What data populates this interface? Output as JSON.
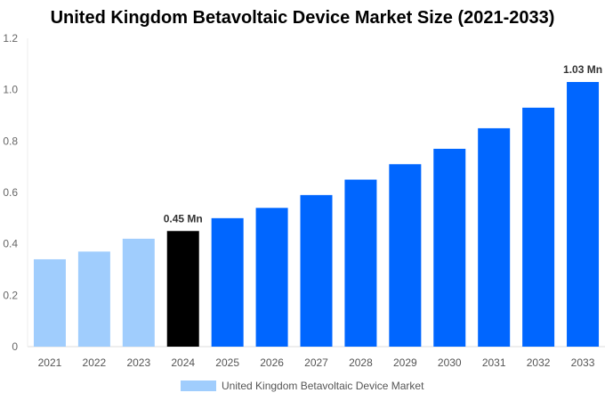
{
  "chart_data": {
    "type": "bar",
    "title": "United Kingdom Betavoltaic Device Market Size (2021-2033)",
    "categories": [
      "2021",
      "2022",
      "2023",
      "2024",
      "2025",
      "2026",
      "2027",
      "2028",
      "2029",
      "2030",
      "2031",
      "2032",
      "2033"
    ],
    "series": [
      {
        "name": "United Kingdom Betavoltaic Device Market",
        "values": [
          0.34,
          0.37,
          0.42,
          0.45,
          0.5,
          0.54,
          0.59,
          0.65,
          0.71,
          0.77,
          0.85,
          0.93,
          1.03
        ]
      }
    ],
    "ylim": [
      0,
      1.2
    ],
    "yticks": [
      "0",
      "0.2",
      "0.4",
      "0.6",
      "0.8",
      "1.0",
      "1.2"
    ],
    "data_labels": [
      {
        "category": "2024",
        "text": "0.45 Mn"
      },
      {
        "category": "2033",
        "text": "1.03 Mn"
      }
    ],
    "colors": {
      "historical": "#a0cdfd",
      "base_year": "#000000",
      "forecast": "#0066ff"
    },
    "legend": "bottom",
    "grid": false
  }
}
